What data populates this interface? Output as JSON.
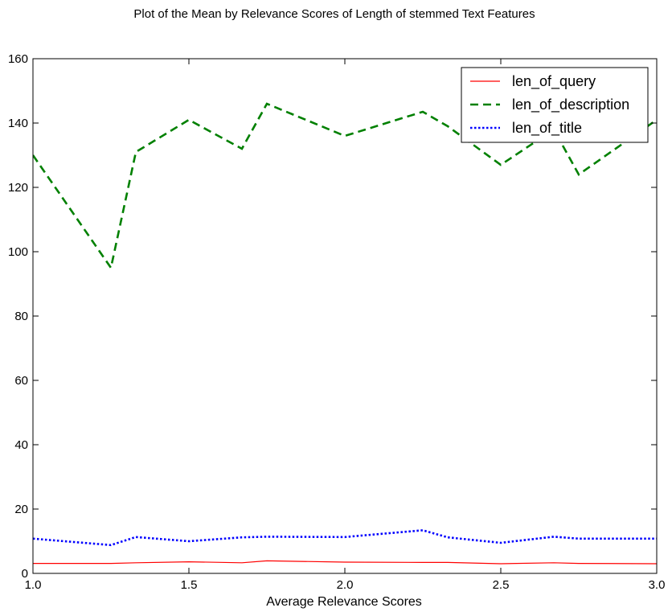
{
  "chart_data": {
    "type": "line",
    "title": "Plot of the Mean by Relevance Scores of Length of stemmed Text Features",
    "xlabel": "Average Relevance Scores",
    "ylabel": "",
    "xlim": [
      1.0,
      3.0
    ],
    "ylim": [
      0,
      160
    ],
    "xticks": [
      "1.0",
      "1.5",
      "2.0",
      "2.5",
      "3.0"
    ],
    "yticks": [
      "0",
      "20",
      "40",
      "60",
      "80",
      "100",
      "120",
      "140",
      "160"
    ],
    "grid": false,
    "legend_position": "top-right",
    "x": [
      1.0,
      1.25,
      1.33,
      1.5,
      1.67,
      1.75,
      2.0,
      2.25,
      2.33,
      2.5,
      2.67,
      2.75,
      3.0
    ],
    "series": [
      {
        "name": "len_of_query",
        "color": "#ff0000",
        "style": "solid",
        "values": [
          3.1,
          3.1,
          3.3,
          3.6,
          3.3,
          3.9,
          3.5,
          3.4,
          3.4,
          3.0,
          3.3,
          3.1,
          3.0
        ]
      },
      {
        "name": "len_of_description",
        "color": "#008000",
        "style": "dashed",
        "values": [
          130,
          95,
          131,
          141,
          132,
          146,
          136,
          143.5,
          139,
          127,
          138,
          124,
          141
        ]
      },
      {
        "name": "len_of_title",
        "color": "#0000ff",
        "style": "dotted",
        "values": [
          10.8,
          8.8,
          11.3,
          10.0,
          11.2,
          11.4,
          11.3,
          13.4,
          11.2,
          9.5,
          11.4,
          10.8,
          10.8
        ]
      }
    ]
  }
}
